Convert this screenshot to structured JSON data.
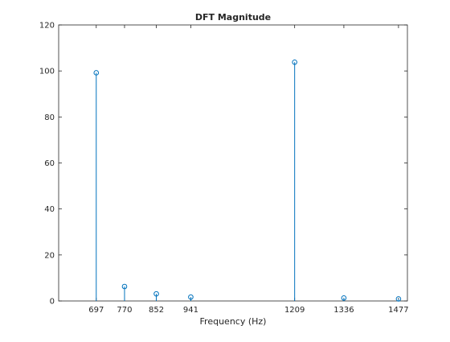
{
  "chart_data": {
    "type": "stem",
    "title": "DFT Magnitude",
    "xlabel": "Frequency (Hz)",
    "ylabel": "",
    "xlim": [
      600,
      1500
    ],
    "ylim": [
      0,
      120
    ],
    "x_ticks": [
      697,
      770,
      852,
      941,
      1209,
      1336,
      1477
    ],
    "y_ticks": [
      0,
      20,
      40,
      60,
      80,
      100,
      120
    ],
    "grid": false,
    "series": [
      {
        "x": [
          697,
          770,
          852,
          941,
          1209,
          1336,
          1477
        ],
        "values": [
          99.2,
          6.3,
          3.1,
          1.7,
          103.8,
          1.3,
          0.9
        ]
      }
    ],
    "colors": {
      "stem": "#0072BD",
      "axes": "#262626",
      "background": "#ffffff"
    }
  }
}
